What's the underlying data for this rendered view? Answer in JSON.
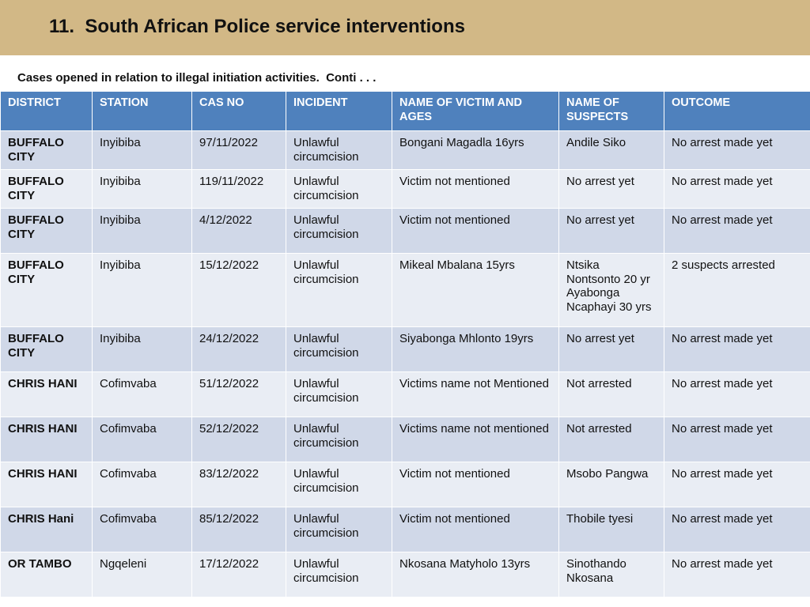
{
  "header": {
    "title": "11.  South African Police service interventions"
  },
  "subtitle": "Cases opened in relation to illegal initiation activities.  Conti . . .",
  "table": {
    "columns": [
      "DISTRICT",
      "STATION",
      "CAS NO",
      "INCIDENT",
      "NAME OF VICTIM AND AGES",
      "NAME OF SUSPECTS",
      "OUTCOME"
    ],
    "rows": [
      [
        "BUFFALO CITY",
        "Inyibiba",
        "97/11/2022",
        "Unlawful circumcision",
        "Bongani Magadla 16yrs",
        "Andile Siko",
        "No arrest made yet"
      ],
      [
        "BUFFALO CITY",
        "Inyibiba",
        "119/11/2022",
        "Unlawful circumcision",
        "Victim not mentioned",
        "No arrest yet",
        "No arrest made yet"
      ],
      [
        "BUFFALO CITY",
        "Inyibiba",
        "4/12/2022",
        "Unlawful circumcision",
        "Victim not mentioned",
        "No arrest yet",
        "No arrest made yet"
      ],
      [
        "BUFFALO CITY",
        "Inyibiba",
        "15/12/2022",
        "Unlawful circumcision",
        "Mikeal Mbalana  15yrs",
        "Ntsika Nontsonto 20 yr Ayabonga Ncaphayi 30 yrs",
        "2 suspects arrested"
      ],
      [
        "BUFFALO CITY",
        "Inyibiba",
        "24/12/2022",
        "Unlawful circumcision",
        "Siyabonga  Mhlonto 19yrs",
        "No arrest yet",
        "No arrest made yet"
      ],
      [
        "CHRIS HANI",
        "Cofimvaba",
        "51/12/2022",
        "Unlawful circumcision",
        "Victims name not Mentioned",
        "Not arrested",
        "No arrest made yet"
      ],
      [
        "CHRIS HANI",
        "Cofimvaba",
        "52/12/2022",
        "Unlawful circumcision",
        "Victims name not mentioned",
        "Not arrested",
        "No arrest made yet"
      ],
      [
        "CHRIS HANI",
        "Cofimvaba",
        "83/12/2022",
        "Unlawful circumcision",
        "Victim not mentioned",
        "Msobo Pangwa",
        "No arrest made yet"
      ],
      [
        "CHRIS Hani",
        "Cofimvaba",
        "85/12/2022",
        "Unlawful circumcision",
        "Victim not mentioned",
        "Thobile tyesi",
        "No arrest made yet"
      ],
      [
        "OR TAMBO",
        "Ngqeleni",
        "17/12/2022",
        "Unlawful circumcision",
        "Nkosana Matyholo 13yrs",
        "Sinothando Nkosana",
        "No arrest made yet"
      ]
    ]
  }
}
